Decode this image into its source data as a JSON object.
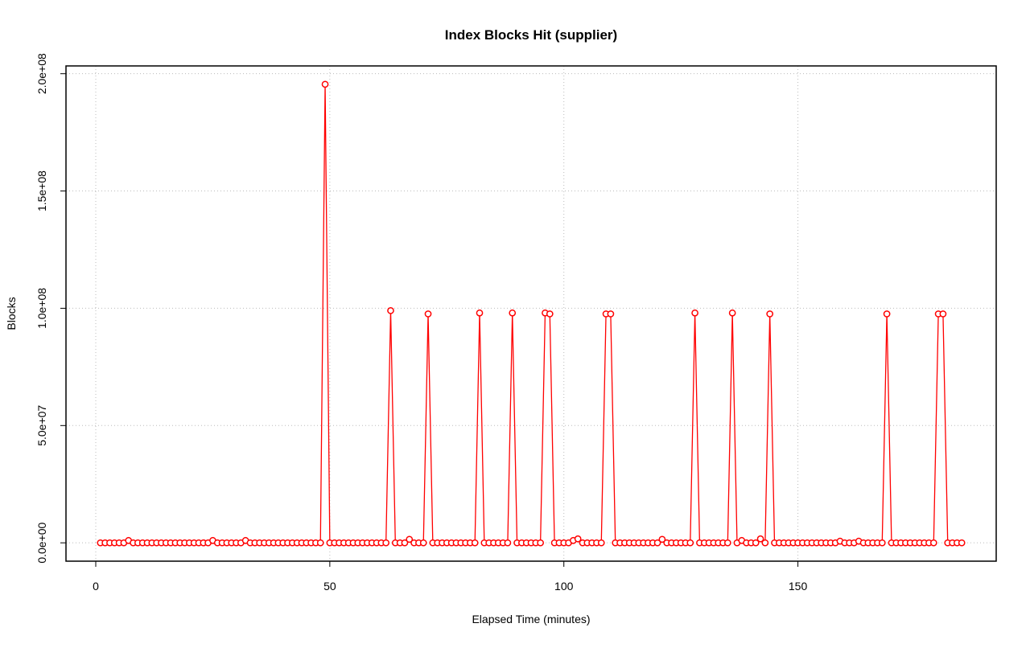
{
  "chart_data": {
    "type": "line",
    "title": "Index Blocks Hit (supplier)",
    "x_label": "Elapsed Time (minutes)",
    "y_label": "Blocks",
    "x": [
      1,
      2,
      3,
      4,
      5,
      6,
      7,
      8,
      9,
      10,
      11,
      12,
      13,
      14,
      15,
      16,
      17,
      18,
      19,
      20,
      21,
      22,
      23,
      24,
      25,
      26,
      27,
      28,
      29,
      30,
      31,
      32,
      33,
      34,
      35,
      36,
      37,
      38,
      39,
      40,
      41,
      42,
      43,
      44,
      45,
      46,
      47,
      48,
      49,
      50,
      51,
      52,
      53,
      54,
      55,
      56,
      57,
      58,
      59,
      60,
      61,
      62,
      63,
      64,
      65,
      66,
      67,
      68,
      69,
      70,
      71,
      72,
      73,
      74,
      75,
      76,
      77,
      78,
      79,
      80,
      81,
      82,
      83,
      84,
      85,
      86,
      87,
      88,
      89,
      90,
      91,
      92,
      93,
      94,
      95,
      96,
      97,
      98,
      99,
      100,
      101,
      102,
      103,
      104,
      105,
      106,
      107,
      108,
      109,
      110,
      111,
      112,
      113,
      114,
      115,
      116,
      117,
      118,
      119,
      120,
      121,
      122,
      123,
      124,
      125,
      126,
      127,
      128,
      129,
      130,
      131,
      132,
      133,
      134,
      135,
      136,
      137,
      138,
      139,
      140,
      141,
      142,
      143,
      144,
      145,
      146,
      147,
      148,
      149,
      150,
      151,
      152,
      153,
      154,
      155,
      156,
      157,
      158,
      159,
      160,
      161,
      162,
      163,
      164,
      165,
      166,
      167,
      168,
      169,
      170,
      171,
      172,
      173,
      174,
      175,
      176,
      177,
      178,
      179,
      180,
      181,
      182,
      183,
      184,
      185
    ],
    "series": [
      {
        "name": "supplier",
        "color": "#ff0000",
        "values": [
          0,
          0,
          0,
          0,
          0,
          0,
          1000000,
          0,
          0,
          0,
          0,
          0,
          0,
          0,
          0,
          0,
          0,
          0,
          0,
          0,
          0,
          0,
          0,
          0,
          1000000,
          0,
          0,
          0,
          0,
          0,
          0,
          1000000,
          0,
          0,
          0,
          0,
          0,
          0,
          0,
          0,
          0,
          0,
          0,
          0,
          0,
          0,
          0,
          0,
          195500000,
          0,
          0,
          0,
          0,
          0,
          0,
          0,
          0,
          0,
          0,
          0,
          0,
          0,
          99000000,
          0,
          0,
          0,
          1500000,
          0,
          0,
          0,
          97600000,
          0,
          0,
          0,
          0,
          0,
          0,
          0,
          0,
          0,
          0,
          98000000,
          0,
          0,
          0,
          0,
          0,
          0,
          98000000,
          0,
          0,
          0,
          0,
          0,
          0,
          98000000,
          97600000,
          0,
          0,
          0,
          0,
          1000000,
          1700000,
          0,
          0,
          0,
          0,
          0,
          97600000,
          97600000,
          0,
          0,
          0,
          0,
          0,
          0,
          0,
          0,
          0,
          0,
          1500000,
          0,
          0,
          0,
          0,
          0,
          0,
          98000000,
          0,
          0,
          0,
          0,
          0,
          0,
          0,
          98000000,
          0,
          1000000,
          0,
          0,
          0,
          1700000,
          0,
          97600000,
          0,
          0,
          0,
          0,
          0,
          0,
          0,
          0,
          0,
          0,
          0,
          0,
          0,
          0,
          700000,
          0,
          0,
          0,
          700000,
          0,
          0,
          0,
          0,
          0,
          97600000,
          0,
          0,
          0,
          0,
          0,
          0,
          0,
          0,
          0,
          0,
          97600000,
          97600000,
          0,
          0,
          0,
          0
        ]
      }
    ],
    "xlim": [
      -6.36,
      192.36
    ],
    "ylim": [
      -7820000,
      203320000
    ],
    "xticks": [
      0,
      50,
      100,
      150
    ],
    "yticks": [
      {
        "value": 0,
        "label": "0.0e+00"
      },
      {
        "value": 50000000,
        "label": "5.0e+07"
      },
      {
        "value": 100000000,
        "label": "1.0e+08"
      },
      {
        "value": 150000000,
        "label": "1.5e+08"
      },
      {
        "value": 200000000,
        "label": "2.0e+08"
      }
    ],
    "grid": true
  }
}
